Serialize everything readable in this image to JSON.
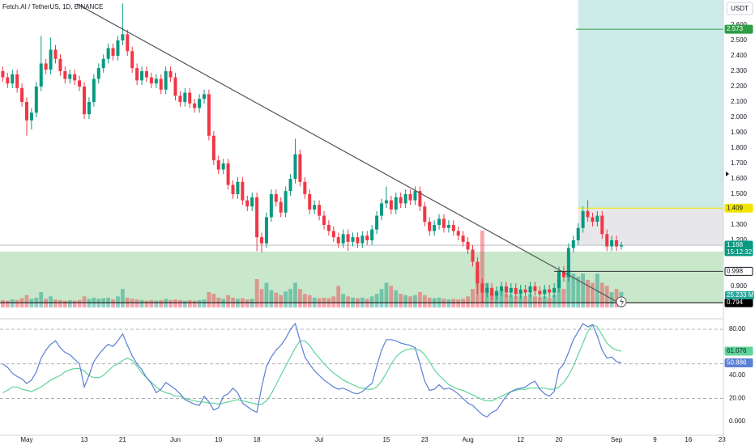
{
  "chart_data": {
    "type": "candlestick",
    "title": "Fetch.AI / TetherUS, 1D, BINANCE",
    "currency": "USDT",
    "countdown": "15:12:32",
    "up_color": "#089981",
    "down_color": "#f23645",
    "xlim": [
      -0.574,
      150.29
    ],
    "xticks": [
      {
        "value": 5,
        "label": "May"
      },
      {
        "value": 17,
        "label": "13"
      },
      {
        "value": 25,
        "label": "21"
      },
      {
        "value": 36,
        "label": "Jun"
      },
      {
        "value": 45,
        "label": "10"
      },
      {
        "value": 53,
        "label": "18"
      },
      {
        "value": 66,
        "label": "Jul"
      },
      {
        "value": 80,
        "label": "15"
      },
      {
        "value": 88,
        "label": "23"
      },
      {
        "value": 97,
        "label": "Aug"
      },
      {
        "value": 108,
        "label": "12"
      },
      {
        "value": 116,
        "label": "20"
      },
      {
        "value": 128,
        "label": "Sep"
      },
      {
        "value": 136,
        "label": "9"
      },
      {
        "value": 143,
        "label": "16"
      },
      {
        "value": 150,
        "label": "23"
      }
    ],
    "ylim": [
      0.763,
      2.763
    ],
    "yticks": [
      {
        "value": 2.6,
        "label": "2.600"
      },
      {
        "value": 2.5,
        "label": "2.500"
      },
      {
        "value": 2.4,
        "label": "2.400"
      },
      {
        "value": 2.3,
        "label": "2.300"
      },
      {
        "value": 2.2,
        "label": "2.200"
      },
      {
        "value": 2.1,
        "label": "2.100"
      },
      {
        "value": 2.0,
        "label": "2.000"
      },
      {
        "value": 1.9,
        "label": "1.900"
      },
      {
        "value": 1.8,
        "label": "1.800"
      },
      {
        "value": 1.7,
        "label": "1.700"
      },
      {
        "value": 1.6,
        "label": "1.600"
      },
      {
        "value": 1.5,
        "label": "1.500"
      },
      {
        "value": 1.3,
        "label": "1.300"
      },
      {
        "value": 1.2,
        "label": "1.200"
      },
      {
        "value": 0.9,
        "label": "0.900"
      }
    ],
    "ohlc": [
      [
        2.3,
        2.33,
        2.23,
        2.26
      ],
      [
        2.26,
        2.29,
        2.19,
        2.22
      ],
      [
        2.22,
        2.31,
        2.19,
        2.28
      ],
      [
        2.28,
        2.31,
        2.16,
        2.19
      ],
      [
        2.19,
        2.22,
        2.07,
        2.1
      ],
      [
        2.1,
        2.13,
        1.88,
        1.98
      ],
      [
        1.98,
        2.06,
        1.92,
        2.03
      ],
      [
        2.03,
        2.23,
        2.0,
        2.2
      ],
      [
        2.2,
        2.53,
        2.17,
        2.35
      ],
      [
        2.35,
        2.38,
        2.28,
        2.31
      ],
      [
        2.31,
        2.52,
        2.28,
        2.44
      ],
      [
        2.44,
        2.47,
        2.35,
        2.38
      ],
      [
        2.38,
        2.41,
        2.27,
        2.3
      ],
      [
        2.3,
        2.33,
        2.22,
        2.25
      ],
      [
        2.25,
        2.31,
        2.22,
        2.28
      ],
      [
        2.28,
        2.31,
        2.21,
        2.24
      ],
      [
        2.24,
        2.27,
        2.17,
        2.2
      ],
      [
        2.2,
        2.23,
        1.99,
        2.02
      ],
      [
        2.02,
        2.13,
        1.99,
        2.1
      ],
      [
        2.1,
        2.28,
        2.07,
        2.25
      ],
      [
        2.25,
        2.35,
        2.22,
        2.32
      ],
      [
        2.32,
        2.41,
        2.29,
        2.38
      ],
      [
        2.38,
        2.48,
        2.35,
        2.45
      ],
      [
        2.45,
        2.48,
        2.37,
        2.4
      ],
      [
        2.4,
        2.53,
        2.37,
        2.5
      ],
      [
        2.5,
        2.74,
        2.47,
        2.54
      ],
      [
        2.54,
        2.57,
        2.4,
        2.43
      ],
      [
        2.43,
        2.46,
        2.29,
        2.32
      ],
      [
        2.32,
        2.35,
        2.21,
        2.24
      ],
      [
        2.24,
        2.33,
        2.21,
        2.3
      ],
      [
        2.3,
        2.33,
        2.23,
        2.26
      ],
      [
        2.26,
        2.29,
        2.19,
        2.22
      ],
      [
        2.22,
        2.28,
        2.19,
        2.25
      ],
      [
        2.25,
        2.28,
        2.15,
        2.18
      ],
      [
        2.18,
        2.33,
        2.15,
        2.3
      ],
      [
        2.3,
        2.33,
        2.23,
        2.26
      ],
      [
        2.26,
        2.29,
        2.11,
        2.14
      ],
      [
        2.14,
        2.17,
        2.07,
        2.1
      ],
      [
        2.1,
        2.19,
        2.07,
        2.16
      ],
      [
        2.16,
        2.19,
        2.06,
        2.09
      ],
      [
        2.09,
        2.12,
        2.03,
        2.06
      ],
      [
        2.06,
        2.15,
        2.03,
        2.12
      ],
      [
        2.12,
        2.18,
        2.09,
        2.15
      ],
      [
        2.15,
        2.18,
        1.85,
        1.88
      ],
      [
        1.88,
        1.91,
        1.69,
        1.72
      ],
      [
        1.72,
        1.75,
        1.63,
        1.66
      ],
      [
        1.66,
        1.73,
        1.63,
        1.7
      ],
      [
        1.7,
        1.73,
        1.53,
        1.56
      ],
      [
        1.56,
        1.59,
        1.47,
        1.5
      ],
      [
        1.5,
        1.61,
        1.47,
        1.58
      ],
      [
        1.58,
        1.61,
        1.43,
        1.46
      ],
      [
        1.46,
        1.49,
        1.39,
        1.42
      ],
      [
        1.42,
        1.51,
        1.39,
        1.48
      ],
      [
        1.48,
        1.51,
        1.13,
        1.22
      ],
      [
        1.22,
        1.25,
        1.12,
        1.18
      ],
      [
        1.18,
        1.38,
        1.15,
        1.35
      ],
      [
        1.35,
        1.53,
        1.32,
        1.5
      ],
      [
        1.5,
        1.53,
        1.42,
        1.45
      ],
      [
        1.45,
        1.48,
        1.35,
        1.38
      ],
      [
        1.38,
        1.55,
        1.35,
        1.52
      ],
      [
        1.52,
        1.63,
        1.49,
        1.6
      ],
      [
        1.6,
        1.86,
        1.57,
        1.76
      ],
      [
        1.76,
        1.79,
        1.55,
        1.58
      ],
      [
        1.58,
        1.61,
        1.47,
        1.5
      ],
      [
        1.5,
        1.53,
        1.37,
        1.4
      ],
      [
        1.4,
        1.46,
        1.37,
        1.43
      ],
      [
        1.43,
        1.46,
        1.33,
        1.36
      ],
      [
        1.36,
        1.39,
        1.27,
        1.3
      ],
      [
        1.3,
        1.33,
        1.23,
        1.26
      ],
      [
        1.26,
        1.29,
        1.19,
        1.22
      ],
      [
        1.22,
        1.25,
        1.15,
        1.18
      ],
      [
        1.18,
        1.27,
        1.15,
        1.24
      ],
      [
        1.24,
        1.27,
        1.13,
        1.19
      ],
      [
        1.19,
        1.25,
        1.16,
        1.22
      ],
      [
        1.22,
        1.25,
        1.15,
        1.18
      ],
      [
        1.18,
        1.26,
        1.15,
        1.23
      ],
      [
        1.23,
        1.26,
        1.17,
        1.2
      ],
      [
        1.2,
        1.3,
        1.17,
        1.27
      ],
      [
        1.27,
        1.39,
        1.24,
        1.36
      ],
      [
        1.36,
        1.47,
        1.33,
        1.44
      ],
      [
        1.44,
        1.55,
        1.41,
        1.46
      ],
      [
        1.46,
        1.49,
        1.37,
        1.4
      ],
      [
        1.4,
        1.51,
        1.37,
        1.48
      ],
      [
        1.48,
        1.51,
        1.41,
        1.44
      ],
      [
        1.44,
        1.53,
        1.41,
        1.5
      ],
      [
        1.5,
        1.53,
        1.43,
        1.46
      ],
      [
        1.46,
        1.55,
        1.43,
        1.52
      ],
      [
        1.52,
        1.55,
        1.39,
        1.42
      ],
      [
        1.42,
        1.45,
        1.29,
        1.32
      ],
      [
        1.32,
        1.35,
        1.23,
        1.26
      ],
      [
        1.26,
        1.33,
        1.23,
        1.3
      ],
      [
        1.3,
        1.37,
        1.27,
        1.34
      ],
      [
        1.34,
        1.37,
        1.25,
        1.28
      ],
      [
        1.28,
        1.33,
        1.25,
        1.3
      ],
      [
        1.3,
        1.33,
        1.23,
        1.26
      ],
      [
        1.26,
        1.29,
        1.2,
        1.23
      ],
      [
        1.23,
        1.26,
        1.16,
        1.19
      ],
      [
        1.19,
        1.22,
        1.11,
        1.14
      ],
      [
        1.14,
        1.17,
        1.03,
        1.06
      ],
      [
        1.06,
        1.09,
        0.85,
        0.92
      ],
      [
        0.92,
        0.95,
        0.794,
        0.86
      ],
      [
        0.86,
        0.92,
        0.83,
        0.89
      ],
      [
        0.89,
        0.92,
        0.81,
        0.84
      ],
      [
        0.84,
        0.9,
        0.81,
        0.87
      ],
      [
        0.87,
        0.93,
        0.84,
        0.9
      ],
      [
        0.9,
        0.93,
        0.83,
        0.86
      ],
      [
        0.86,
        0.92,
        0.83,
        0.89
      ],
      [
        0.89,
        0.92,
        0.82,
        0.85
      ],
      [
        0.85,
        0.91,
        0.82,
        0.88
      ],
      [
        0.88,
        0.91,
        0.83,
        0.86
      ],
      [
        0.86,
        0.93,
        0.83,
        0.9
      ],
      [
        0.9,
        0.93,
        0.84,
        0.87
      ],
      [
        0.87,
        0.9,
        0.82,
        0.85
      ],
      [
        0.85,
        0.91,
        0.82,
        0.88
      ],
      [
        0.88,
        0.91,
        0.83,
        0.86
      ],
      [
        0.86,
        0.92,
        0.83,
        0.89
      ],
      [
        0.89,
        1.03,
        0.86,
        1.0
      ],
      [
        1.0,
        1.03,
        0.93,
        0.96
      ],
      [
        0.96,
        1.18,
        0.93,
        1.15
      ],
      [
        1.15,
        1.23,
        1.12,
        1.2
      ],
      [
        1.2,
        1.31,
        1.17,
        1.28
      ],
      [
        1.28,
        1.42,
        1.25,
        1.39
      ],
      [
        1.39,
        1.46,
        1.32,
        1.35
      ],
      [
        1.35,
        1.38,
        1.29,
        1.32
      ],
      [
        1.32,
        1.39,
        1.29,
        1.36
      ],
      [
        1.36,
        1.39,
        1.21,
        1.24
      ],
      [
        1.24,
        1.27,
        1.13,
        1.16
      ],
      [
        1.16,
        1.23,
        1.13,
        1.2
      ],
      [
        1.2,
        1.23,
        1.13,
        1.16
      ],
      [
        1.16,
        1.19,
        1.14,
        1.168
      ]
    ],
    "volume": [
      12,
      11,
      13,
      12,
      15,
      20,
      14,
      16,
      25,
      14,
      18,
      13,
      12,
      11,
      12,
      11,
      12,
      18,
      14,
      16,
      14,
      15,
      16,
      13,
      18,
      30,
      16,
      14,
      13,
      12,
      11,
      12,
      11,
      12,
      14,
      12,
      13,
      12,
      11,
      12,
      11,
      12,
      13,
      25,
      22,
      16,
      14,
      20,
      16,
      14,
      15,
      13,
      14,
      46,
      30,
      40,
      28,
      24,
      20,
      26,
      30,
      40,
      30,
      22,
      20,
      16,
      15,
      16,
      15,
      18,
      35,
      22,
      18,
      16,
      15,
      16,
      14,
      18,
      22,
      30,
      40,
      35,
      28,
      22,
      20,
      18,
      20,
      25,
      20,
      16,
      15,
      16,
      14,
      13,
      14,
      13,
      14,
      18,
      30,
      60,
      125,
      40,
      28,
      24,
      30,
      22,
      20,
      18,
      20,
      18,
      22,
      18,
      16,
      18,
      16,
      20,
      45,
      30,
      60,
      55,
      50,
      55,
      45,
      40,
      55,
      40,
      35,
      25,
      30,
      25.233
    ],
    "volume_lim": [
      0,
      250
    ],
    "volume_label": "25.233 M",
    "trendline": {
      "x": [
        15.5,
        127.8
      ],
      "y": [
        2.737,
        0.805
      ],
      "color": "#555555"
    },
    "zones": [
      {
        "x": [
          -0.574,
          150.29
        ],
        "y": [
          0.794,
          1.126
        ],
        "color": "rgba(76,175,80,0.3)"
      },
      {
        "x": [
          120,
          150.29
        ],
        "y": [
          1.409,
          2.763
        ],
        "color": "rgba(0,150,136,0.2)"
      },
      {
        "x": [
          120,
          150.29
        ],
        "y": [
          1.168,
          1.409
        ],
        "color": "rgba(120,123,134,0.18)"
      }
    ],
    "levels": [
      {
        "value": 2.573,
        "color": "#2e9e47",
        "from": 119.5
      },
      {
        "value": 1.409,
        "color": "#f2e600",
        "from": 120
      },
      {
        "value": 0.998,
        "color": "#333333",
        "from": 115
      },
      {
        "value": 0.794,
        "color": "#000000",
        "from": -0.574
      }
    ],
    "rsi": {
      "values": [
        50,
        47,
        42,
        39,
        37,
        33,
        36,
        43,
        55,
        62,
        67,
        70,
        64,
        60,
        58,
        54,
        50,
        30,
        40,
        52,
        58,
        63,
        67,
        65,
        70,
        76,
        66,
        57,
        50,
        45,
        38,
        33,
        25,
        28,
        34,
        31,
        28,
        24,
        19,
        17,
        15,
        14,
        22,
        17,
        10,
        12,
        22,
        24,
        29,
        25,
        16,
        13,
        10,
        8,
        30,
        48,
        56,
        62,
        66,
        72,
        80,
        85,
        70,
        56,
        50,
        44,
        40,
        36,
        33,
        30,
        28,
        29,
        27,
        25,
        24,
        26,
        30,
        33,
        48,
        62,
        71,
        71,
        70,
        68,
        67,
        66,
        64,
        50,
        35,
        27,
        28,
        32,
        28,
        29,
        27,
        24,
        20,
        16,
        14,
        10,
        6,
        4,
        8,
        10,
        16,
        22,
        26,
        28,
        29,
        30,
        33,
        35,
        28,
        24,
        22,
        26,
        45,
        50,
        60,
        71,
        78,
        85,
        82,
        84,
        74,
        62,
        55,
        56,
        52,
        50.886
      ],
      "ma": [
        25,
        27,
        30,
        30,
        28,
        27,
        26,
        28,
        30,
        33,
        36,
        38,
        40,
        43,
        45,
        46,
        46,
        44,
        40,
        38,
        38,
        40,
        44,
        48,
        50,
        53,
        55,
        53,
        48,
        42,
        38,
        34,
        30,
        27,
        25,
        24,
        22,
        22,
        20,
        19,
        18,
        17,
        17,
        16,
        16,
        15,
        16,
        17,
        18,
        19,
        18,
        17,
        16,
        15,
        15,
        18,
        24,
        32,
        40,
        48,
        56,
        64,
        70,
        70,
        66,
        60,
        55,
        50,
        46,
        42,
        39,
        36,
        34,
        32,
        30,
        29,
        28,
        28,
        30,
        35,
        42,
        50,
        56,
        60,
        62,
        63,
        63,
        62,
        58,
        52,
        45,
        40,
        36,
        32,
        30,
        28,
        27,
        25,
        23,
        21,
        19,
        18,
        18,
        20,
        22,
        24,
        26,
        27,
        28,
        28,
        29,
        29,
        29,
        29,
        28,
        28,
        30,
        34,
        40,
        48,
        58,
        68,
        78,
        84,
        82,
        75,
        68,
        64,
        62,
        61.076
      ],
      "color": "#5b7fd6",
      "ma_color": "#5fd49a",
      "lim": [
        -13.33,
        88.42
      ],
      "ticks": [
        {
          "value": 80,
          "label": "80.00"
        },
        {
          "value": 40,
          "label": "40.00"
        },
        {
          "value": 20,
          "label": "20.00"
        },
        {
          "value": 0,
          "label": "0.000"
        }
      ],
      "levels": [
        80,
        50,
        20
      ]
    }
  }
}
